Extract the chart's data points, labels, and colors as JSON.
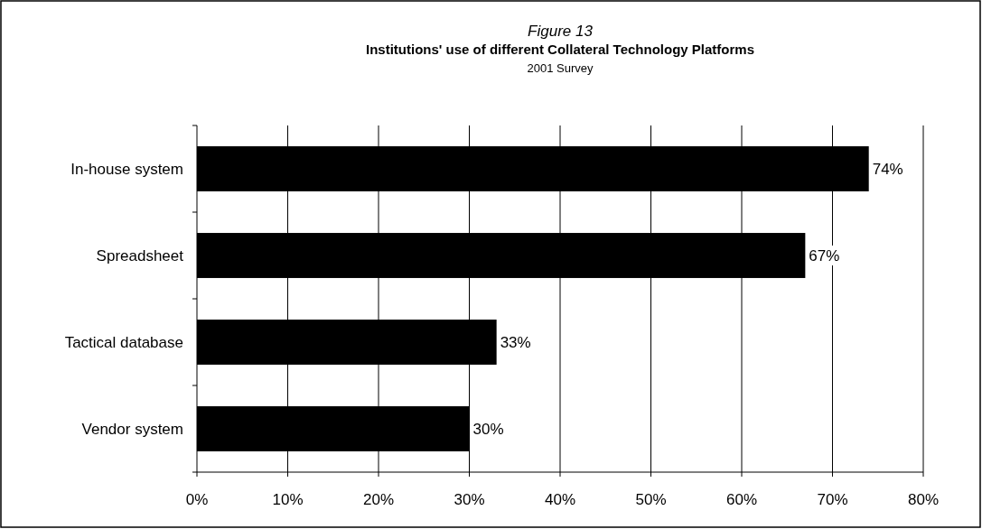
{
  "chart_data": {
    "type": "bar",
    "orientation": "horizontal",
    "annotations": [
      "Figure 13"
    ],
    "title": "Institutions' use of different Collateral Technology Platforms",
    "subtitle": "2001 Survey",
    "categories": [
      "In-house system",
      "Spreadsheet",
      "Tactical database",
      "Vendor system"
    ],
    "values": [
      74,
      67,
      33,
      30
    ],
    "color": "#000000",
    "value_labels": [
      "74%",
      "67%",
      "33%",
      "30%"
    ],
    "xlim": [
      0,
      80
    ],
    "xticks": [
      {
        "value": 0,
        "label": "0%"
      },
      {
        "value": 10,
        "label": "10%"
      },
      {
        "value": 20,
        "label": "20%"
      },
      {
        "value": 30,
        "label": "30%"
      },
      {
        "value": 40,
        "label": "40%"
      },
      {
        "value": 50,
        "label": "50%"
      },
      {
        "value": 60,
        "label": "60%"
      },
      {
        "value": 70,
        "label": "70%"
      },
      {
        "value": 80,
        "label": "80%"
      }
    ],
    "grid": "x"
  }
}
